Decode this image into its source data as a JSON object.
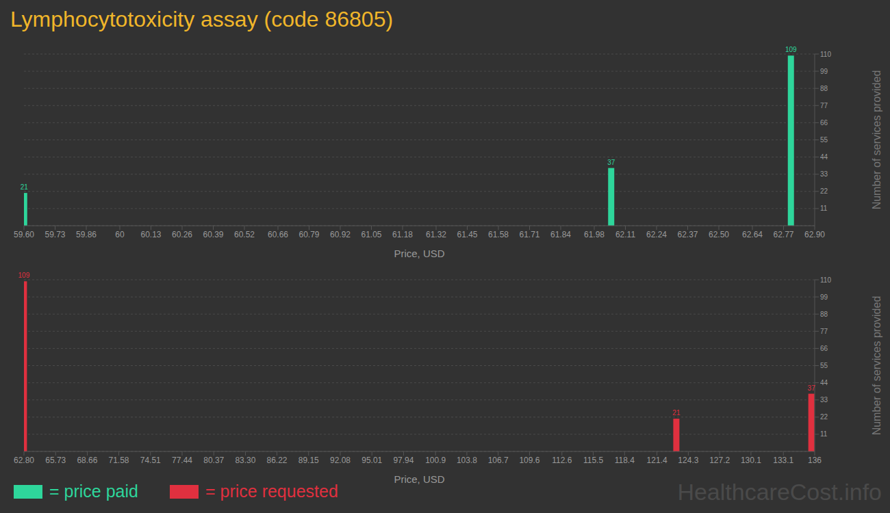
{
  "chart_data": [
    {
      "type": "bar",
      "title": "Lymphocytotoxicity assay (code 86805)",
      "x_label": "Price, USD",
      "y_label": "Number of services provided",
      "series": [
        {
          "name": "= price paid",
          "color": "#2ed69b",
          "x": [
            59.6,
            62.05,
            62.8
          ],
          "values": [
            21,
            37,
            109
          ]
        }
      ],
      "xlim": [
        59.6,
        62.9
      ],
      "xticks": [
        {
          "value": 59.6,
          "label": "59.60"
        },
        59.73,
        59.86,
        60,
        60.13,
        60.26,
        60.39,
        60.52,
        60.66,
        60.79,
        60.92,
        61.05,
        61.18,
        61.32,
        61.45,
        61.58,
        61.71,
        61.84,
        61.98,
        62.11,
        62.24,
        62.37,
        {
          "value": 62.5,
          "label": "62.50"
        },
        62.64,
        62.77,
        {
          "value": 62.9,
          "label": "62.90"
        }
      ],
      "ylim": [
        0,
        110
      ],
      "yticks": [
        11,
        22,
        33,
        44,
        55,
        66,
        77,
        88,
        99,
        110
      ],
      "grid": true,
      "data_labels": true,
      "legend": "bottom"
    },
    {
      "type": "bar",
      "x_label": "Price, USD",
      "y_label": "Number of services provided",
      "series": [
        {
          "name": "= price requested",
          "color": "#e0303f",
          "x": [
            62.8,
            123.2,
            135.7
          ],
          "values": [
            109,
            21,
            37
          ]
        }
      ],
      "xlim": [
        62.8,
        136
      ],
      "xticks": [
        {
          "value": 62.8,
          "label": "62.80"
        },
        65.73,
        68.66,
        71.58,
        74.51,
        77.44,
        80.37,
        {
          "value": 83.3,
          "label": "83.30"
        },
        86.22,
        89.15,
        92.08,
        95.01,
        97.94,
        100.9,
        103.8,
        106.7,
        109.6,
        112.6,
        115.5,
        118.4,
        121.4,
        124.3,
        127.2,
        130.1,
        133.1,
        136
      ],
      "ylim": [
        0,
        110
      ],
      "yticks": [
        11,
        22,
        33,
        44,
        55,
        66,
        77,
        88,
        99,
        110
      ],
      "grid": true,
      "data_labels": true,
      "legend": "bottom",
      "annotation": "HealthcareCost.info"
    }
  ]
}
